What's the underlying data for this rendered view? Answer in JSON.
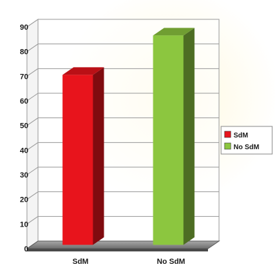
{
  "chart_data": {
    "type": "bar",
    "title": "",
    "xlabel": "",
    "ylabel": "",
    "categories": [
      "SdM",
      "No SdM"
    ],
    "values": [
      69,
      85
    ],
    "ylim": [
      0,
      90
    ],
    "yticks": [
      0,
      10,
      20,
      30,
      40,
      50,
      60,
      70,
      80,
      90
    ],
    "grid": true,
    "three_d": true,
    "legend": {
      "position": "right",
      "entries": [
        "SdM",
        "No SdM"
      ]
    },
    "colors": {
      "SdM": "#e8141c",
      "No SdM": "#8cc63f"
    }
  }
}
